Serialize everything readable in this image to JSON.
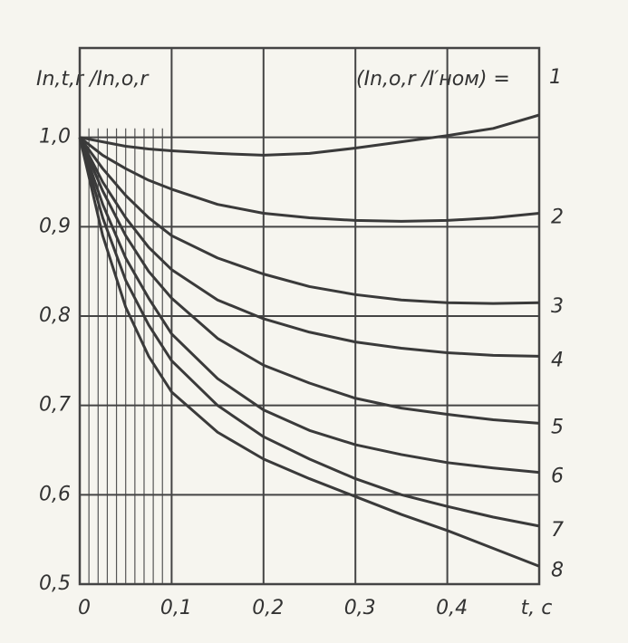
{
  "chart_data": {
    "type": "line",
    "y_label": "In,t,r /In,o,r",
    "x_label": "t, c",
    "legend_title": "(In,o,r /I′ном) =",
    "x": [
      0,
      0.025,
      0.05,
      0.075,
      0.1,
      0.15,
      0.2,
      0.25,
      0.3,
      0.35,
      0.4,
      0.45,
      0.5
    ],
    "series": [
      {
        "name": "1",
        "color": "#3a3a3a",
        "values": [
          1.0,
          0.995,
          0.99,
          0.987,
          0.985,
          0.982,
          0.98,
          0.982,
          0.988,
          0.995,
          1.002,
          1.01,
          1.025
        ]
      },
      {
        "name": "2",
        "color": "#3a3a3a",
        "values": [
          1.0,
          0.98,
          0.965,
          0.952,
          0.942,
          0.925,
          0.915,
          0.91,
          0.907,
          0.906,
          0.907,
          0.91,
          0.915
        ]
      },
      {
        "name": "3",
        "color": "#3a3a3a",
        "values": [
          1.0,
          0.965,
          0.935,
          0.91,
          0.89,
          0.865,
          0.847,
          0.833,
          0.824,
          0.818,
          0.815,
          0.814,
          0.815
        ]
      },
      {
        "name": "4",
        "color": "#3a3a3a",
        "values": [
          1.0,
          0.95,
          0.91,
          0.877,
          0.852,
          0.818,
          0.797,
          0.782,
          0.771,
          0.764,
          0.759,
          0.756,
          0.755
        ]
      },
      {
        "name": "5",
        "color": "#3a3a3a",
        "values": [
          1.0,
          0.94,
          0.89,
          0.85,
          0.82,
          0.775,
          0.745,
          0.725,
          0.708,
          0.697,
          0.69,
          0.684,
          0.68
        ]
      },
      {
        "name": "6",
        "color": "#3a3a3a",
        "values": [
          1.0,
          0.925,
          0.865,
          0.82,
          0.78,
          0.73,
          0.695,
          0.672,
          0.656,
          0.645,
          0.636,
          0.63,
          0.625
        ]
      },
      {
        "name": "7",
        "color": "#3a3a3a",
        "values": [
          1.0,
          0.91,
          0.84,
          0.79,
          0.75,
          0.7,
          0.665,
          0.64,
          0.618,
          0.6,
          0.587,
          0.575,
          0.565
        ]
      },
      {
        "name": "8",
        "color": "#3a3a3a",
        "values": [
          1.0,
          0.89,
          0.81,
          0.755,
          0.715,
          0.67,
          0.64,
          0.618,
          0.598,
          0.578,
          0.56,
          0.54,
          0.52
        ]
      }
    ],
    "xlim": [
      0,
      0.5
    ],
    "xticks": [
      0,
      {
        "value": 0.1,
        "label": "0,1"
      },
      {
        "value": 0.2,
        "label": "0,2"
      },
      {
        "value": 0.3,
        "label": "0,3"
      },
      {
        "value": 0.4,
        "label": "0,4"
      }
    ],
    "x_minor_ticks": [
      0.01,
      0.02,
      0.03,
      0.04,
      0.05,
      0.06,
      0.07,
      0.08,
      0.09
    ],
    "ylim": [
      0.5,
      1.1
    ],
    "yticks": [
      {
        "value": 0.5,
        "label": "0,5"
      },
      {
        "value": 0.6,
        "label": "0,6"
      },
      {
        "value": 0.7,
        "label": "0,7"
      },
      {
        "value": 0.8,
        "label": "0,8"
      },
      {
        "value": 0.9,
        "label": "0,9"
      },
      {
        "value": 1.0,
        "label": "1,0"
      }
    ],
    "grid": true
  }
}
